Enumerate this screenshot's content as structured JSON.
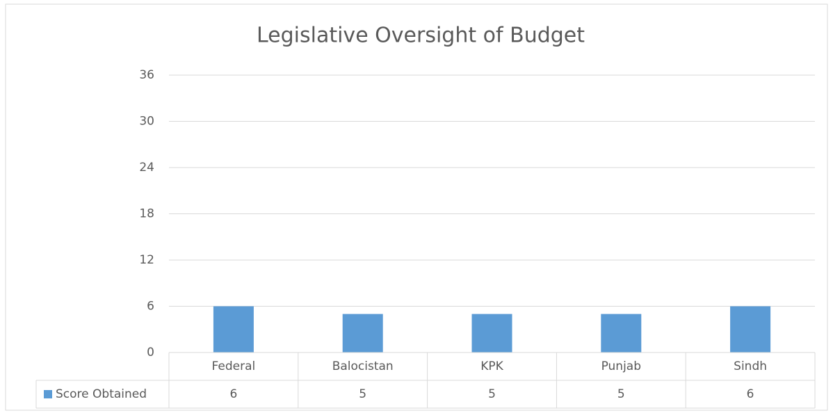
{
  "chart_data": {
    "type": "bar",
    "title": "Legislative Oversight of Budget",
    "categories": [
      "Federal",
      "Balocistan",
      "KPK",
      "Punjab",
      "Sindh"
    ],
    "series": [
      {
        "name": "Score Obtained",
        "color": "#5b9bd5",
        "values": [
          6,
          5,
          5,
          5,
          6
        ]
      }
    ],
    "ylim": [
      0,
      36
    ],
    "yticks": [
      0,
      6,
      12,
      18,
      24,
      30,
      36
    ],
    "grid": true,
    "data_table": true
  }
}
